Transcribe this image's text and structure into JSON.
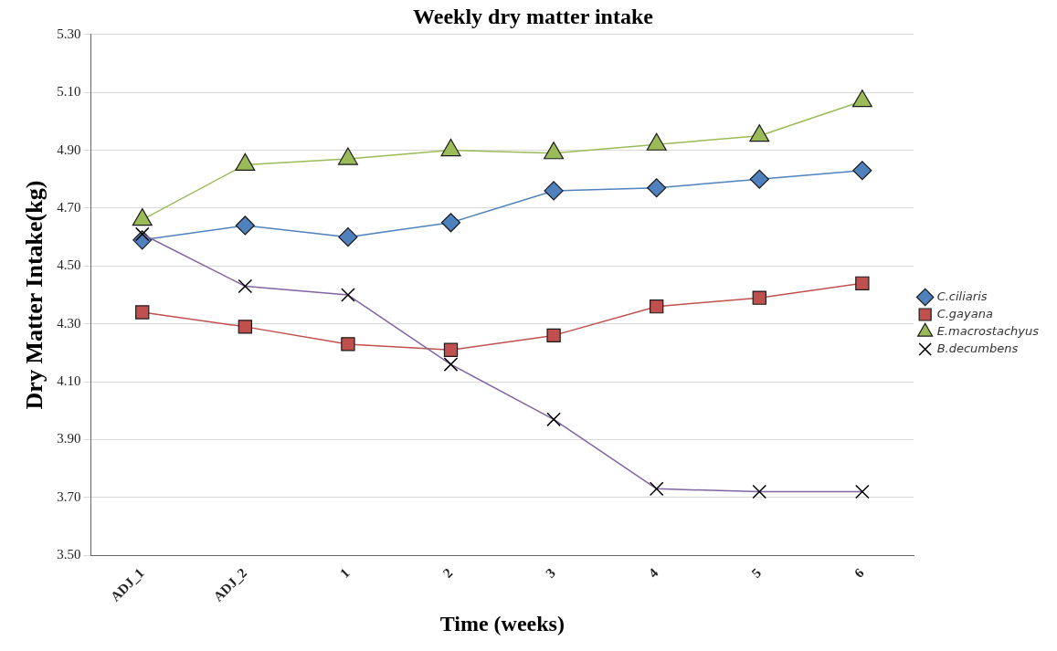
{
  "chart_data": {
    "type": "line",
    "title": "Weekly dry matter intake",
    "xlabel": "Time (weeks)",
    "ylabel": "Dry Matter Intake(kg)",
    "categories": [
      "ADJ_1",
      "ADJ_2",
      "1",
      "2",
      "3",
      "4",
      "5",
      "6"
    ],
    "series": [
      {
        "name": "C.ciliaris",
        "color": "#4f81bd",
        "marker": "diamond",
        "values": [
          4.59,
          4.64,
          4.6,
          4.65,
          4.76,
          4.77,
          4.8,
          4.83
        ]
      },
      {
        "name": "C.gayana",
        "color": "#c0504d",
        "marker": "square",
        "values": [
          4.34,
          4.29,
          4.23,
          4.21,
          4.26,
          4.36,
          4.39,
          4.44
        ]
      },
      {
        "name": "E.macrostachyus",
        "color": "#9bbb59",
        "marker": "triangle",
        "values": [
          4.66,
          4.85,
          4.87,
          4.9,
          4.89,
          4.92,
          4.95,
          5.07
        ]
      },
      {
        "name": "B.decumbens",
        "color": "#8064a2",
        "marker": "cross",
        "values": [
          4.61,
          4.43,
          4.4,
          4.16,
          3.97,
          3.73,
          3.72,
          3.72
        ]
      }
    ],
    "ylim": [
      3.5,
      5.3
    ],
    "yticks": [
      {
        "value": 3.5,
        "label": "3.50"
      },
      {
        "value": 3.7,
        "label": "3.70"
      },
      {
        "value": 3.9,
        "label": "3.90"
      },
      {
        "value": 4.1,
        "label": "4.10"
      },
      {
        "value": 4.3,
        "label": "4.30"
      },
      {
        "value": 4.5,
        "label": "4.50"
      },
      {
        "value": 4.7,
        "label": "4.70"
      },
      {
        "value": 4.9,
        "label": "4.90"
      },
      {
        "value": 5.1,
        "label": "5.10"
      },
      {
        "value": 5.3,
        "label": "5.30"
      }
    ],
    "grid": "y",
    "legend": "right",
    "line_style": "solid"
  }
}
